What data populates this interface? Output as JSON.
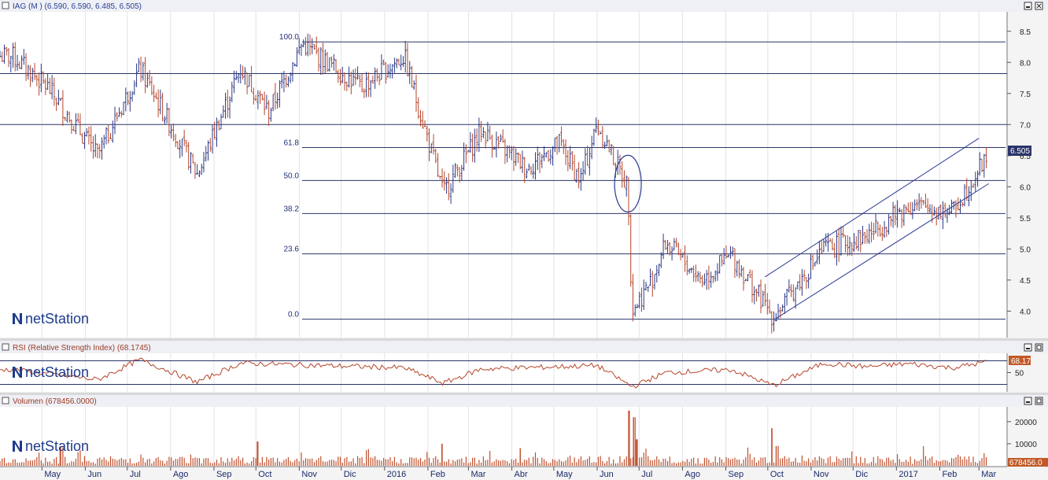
{
  "colors": {
    "bar_down": "#b5462a",
    "bar_up": "#2c3a88",
    "rsi_line": "#b5462a",
    "volume_bar": "#c0502e",
    "grid": "#e2e2ea",
    "fib_line": "#2a3468",
    "channel": "#2a3890",
    "rsi_badge": "#c25a28",
    "price_badge": "#2a3468"
  },
  "icons": {
    "window_controls": [
      "minimize-icon",
      "maximize-icon",
      "close-icon"
    ],
    "logo": "netstation-logo-icon"
  },
  "branding": {
    "logo_text": "netStation"
  },
  "chart_data": [
    {
      "type": "ohlc",
      "title": "IAG (M ) (6.590, 6.590, 6.485, 6.505)",
      "ylim": [
        3.6,
        8.75
      ],
      "y_ticks": [
        "8.5",
        "8.0",
        "7.5",
        "7.0",
        "6.5",
        "6.0",
        "5.5",
        "5.0",
        "4.5",
        "4.0"
      ],
      "last_value_label": "6.505",
      "fibonacci": [
        {
          "label": "100.0",
          "value": 8.33
        },
        {
          "label": "61.8",
          "value": 6.63
        },
        {
          "label": "50.0",
          "value": 6.1
        },
        {
          "label": "38.2",
          "value": 5.57
        },
        {
          "label": "23.6",
          "value": 4.92
        },
        {
          "label": "0.0",
          "value": 3.87
        }
      ],
      "horizontal_lines": [
        7.82,
        7.0
      ],
      "channel": {
        "upper": [
          [
            "2016-09-29",
            4.55
          ],
          [
            "2017-03-01",
            6.78
          ]
        ],
        "lower": [
          [
            "2016-10-06",
            3.87
          ],
          [
            "2017-03-08",
            6.05
          ]
        ]
      },
      "key_points": [
        {
          "date": "2015-04-10",
          "value": 8.1
        },
        {
          "date": "2015-05-05",
          "value": 7.6
        },
        {
          "date": "2015-06-10",
          "value": 6.5
        },
        {
          "date": "2015-07-10",
          "value": 7.9
        },
        {
          "date": "2015-08-20",
          "value": 6.2
        },
        {
          "date": "2015-09-20",
          "value": 7.9
        },
        {
          "date": "2015-10-10",
          "value": 7.2
        },
        {
          "date": "2015-11-03",
          "value": 8.3
        },
        {
          "date": "2015-12-15",
          "value": 7.6
        },
        {
          "date": "2016-01-15",
          "value": 8.1
        },
        {
          "date": "2016-01-25",
          "value": 7.3
        },
        {
          "date": "2016-02-12",
          "value": 5.9
        },
        {
          "date": "2016-03-10",
          "value": 6.9
        },
        {
          "date": "2016-04-12",
          "value": 6.3
        },
        {
          "date": "2016-05-05",
          "value": 6.7
        },
        {
          "date": "2016-05-20",
          "value": 6.1
        },
        {
          "date": "2016-06-01",
          "value": 7.0
        },
        {
          "date": "2016-06-23",
          "value": 6.0
        },
        {
          "date": "2016-06-26",
          "value": 4.0
        },
        {
          "date": "2016-07-10",
          "value": 4.5
        },
        {
          "date": "2016-07-20",
          "value": 5.1
        },
        {
          "date": "2016-08-15",
          "value": 4.5
        },
        {
          "date": "2016-09-05",
          "value": 4.9
        },
        {
          "date": "2016-10-05",
          "value": 3.9
        },
        {
          "date": "2016-11-10",
          "value": 5.0
        },
        {
          "date": "2016-12-10",
          "value": 5.2
        },
        {
          "date": "2017-01-10",
          "value": 5.7
        },
        {
          "date": "2017-02-10",
          "value": 5.6
        },
        {
          "date": "2017-03-07",
          "value": 6.5
        }
      ],
      "annotation": {
        "type": "ellipse",
        "date": "2016-06-23",
        "value": 6.05
      }
    },
    {
      "type": "line",
      "title": "RSI (Relative Strength Index) (68.1745)",
      "ylim": [
        20,
        80
      ],
      "y_ticks": [
        "50"
      ],
      "reference_lines": [
        70,
        30
      ],
      "last_value_label": "68.17",
      "key_points": [
        {
          "date": "2015-04-10",
          "value": 55
        },
        {
          "date": "2015-06-10",
          "value": 38
        },
        {
          "date": "2015-07-10",
          "value": 72
        },
        {
          "date": "2015-08-20",
          "value": 34
        },
        {
          "date": "2015-09-20",
          "value": 66
        },
        {
          "date": "2015-11-03",
          "value": 63
        },
        {
          "date": "2016-01-15",
          "value": 58
        },
        {
          "date": "2016-02-12",
          "value": 32
        },
        {
          "date": "2016-03-10",
          "value": 56
        },
        {
          "date": "2016-06-01",
          "value": 62
        },
        {
          "date": "2016-06-26",
          "value": 26
        },
        {
          "date": "2016-07-20",
          "value": 50
        },
        {
          "date": "2016-09-05",
          "value": 55
        },
        {
          "date": "2016-10-05",
          "value": 28
        },
        {
          "date": "2016-11-10",
          "value": 66
        },
        {
          "date": "2016-12-10",
          "value": 60
        },
        {
          "date": "2017-01-10",
          "value": 65
        },
        {
          "date": "2017-02-10",
          "value": 58
        },
        {
          "date": "2017-03-07",
          "value": 68.17
        }
      ]
    },
    {
      "type": "bar",
      "title": "Volumen (678456.0000)",
      "ylim": [
        0,
        26000
      ],
      "y_ticks": [
        "20000",
        "10000"
      ],
      "last_value_label": "678456.0",
      "baseline_level": 3200,
      "spikes": [
        {
          "date": "2016-06-24",
          "value": 25000
        },
        {
          "date": "2016-06-27",
          "value": 22000
        },
        {
          "date": "2016-06-29",
          "value": 12000
        },
        {
          "date": "2016-02-11",
          "value": 10000
        },
        {
          "date": "2015-10-02",
          "value": 11000
        },
        {
          "date": "2016-10-04",
          "value": 17000
        },
        {
          "date": "2016-10-07",
          "value": 9000
        },
        {
          "date": "2015-05-14",
          "value": 8500
        },
        {
          "date": "2016-04-07",
          "value": 8000
        }
      ]
    }
  ],
  "x_axis": {
    "months": [
      {
        "label": "May",
        "date": "2015-05-01"
      },
      {
        "label": "Jun",
        "date": "2015-06-01"
      },
      {
        "label": "Jul",
        "date": "2015-07-01"
      },
      {
        "label": "Ago",
        "date": "2015-08-01"
      },
      {
        "label": "Sep",
        "date": "2015-09-01"
      },
      {
        "label": "Oct",
        "date": "2015-10-01"
      },
      {
        "label": "Nov",
        "date": "2015-11-01"
      },
      {
        "label": "Dic",
        "date": "2015-12-01"
      },
      {
        "label": "2016",
        "date": "2016-01-01"
      },
      {
        "label": "Feb",
        "date": "2016-02-01"
      },
      {
        "label": "Mar",
        "date": "2016-03-01"
      },
      {
        "label": "Abr",
        "date": "2016-04-01"
      },
      {
        "label": "May",
        "date": "2016-05-01"
      },
      {
        "label": "Jun",
        "date": "2016-06-01"
      },
      {
        "label": "Jul",
        "date": "2016-07-01"
      },
      {
        "label": "Ago",
        "date": "2016-08-01"
      },
      {
        "label": "Sep",
        "date": "2016-09-01"
      },
      {
        "label": "Oct",
        "date": "2016-10-01"
      },
      {
        "label": "Nov",
        "date": "2016-11-01"
      },
      {
        "label": "Dic",
        "date": "2016-12-01"
      },
      {
        "label": "2017",
        "date": "2017-01-01"
      },
      {
        "label": "Feb",
        "date": "2017-02-01"
      },
      {
        "label": "Mar",
        "date": "2017-03-01"
      }
    ]
  }
}
